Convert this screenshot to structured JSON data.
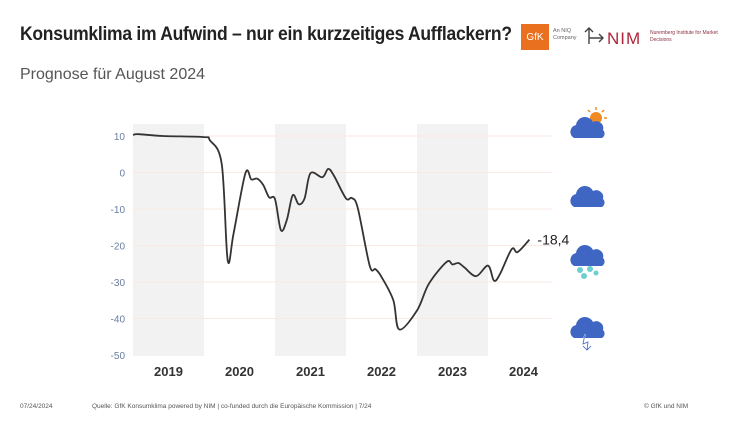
{
  "header": {
    "title": "Konsumklima im Aufwind –  nur ein kurzzeitiges Aufflackern?",
    "subtitle": "Prognose für August 2024"
  },
  "logos": {
    "gfk": "GfK",
    "gfk_sub": "An NIQ Company",
    "nim": "NIM",
    "nim_sub": "Nuremberg Institute for Market Decisions"
  },
  "footer": {
    "date": "07/24/2024",
    "source": "Quelle: GfK Konsumklima powered by NIM | co-funded durch die Europäische Kommission | 7/24",
    "copyright": "© GfK und NIM"
  },
  "icons": [
    "sun-cloud-icon",
    "cloud-icon",
    "rain-cloud-icon",
    "thunder-cloud-icon"
  ],
  "chart_data": {
    "type": "line",
    "title": "",
    "ylim": [
      -50,
      10
    ],
    "yticks": [
      "10",
      "0",
      "-10",
      "-20",
      "-30",
      "-40",
      "-50"
    ],
    "ytick_values": [
      10,
      0,
      -10,
      -20,
      -30,
      -40,
      -50
    ],
    "xlim": [
      "2019-01",
      "2024-12"
    ],
    "xtick_labels": [
      "2019",
      "2020",
      "2021",
      "2022",
      "2023",
      "2024"
    ],
    "shaded_years": [
      "2019",
      "2021",
      "2023"
    ],
    "grid": true,
    "line_color": "#333333",
    "end_label": "-18,4",
    "points": [
      [
        "2019-01",
        10.3
      ],
      [
        "2019-02",
        10.5
      ],
      [
        "2019-06",
        10
      ],
      [
        "2020-01",
        9.7
      ],
      [
        "2020-02",
        8.8
      ],
      [
        "2020-04",
        2.3
      ],
      [
        "2020-05",
        -24
      ],
      [
        "2020-06",
        -16.7
      ],
      [
        "2020-08",
        -0.2
      ],
      [
        "2020-09",
        -1.9
      ],
      [
        "2020-10",
        -1.7
      ],
      [
        "2020-11",
        -3.4
      ],
      [
        "2020-12",
        -6.8
      ],
      [
        "2021-01",
        -7.3
      ],
      [
        "2021-02",
        -15.8
      ],
      [
        "2021-03",
        -13
      ],
      [
        "2021-04",
        -6.2
      ],
      [
        "2021-05",
        -8.7
      ],
      [
        "2021-06",
        -7.1
      ],
      [
        "2021-07",
        -0.2
      ],
      [
        "2021-09",
        -1.3
      ],
      [
        "2021-10",
        1
      ],
      [
        "2021-11",
        -1
      ],
      [
        "2022-01",
        -7.1
      ],
      [
        "2022-02",
        -7
      ],
      [
        "2022-03",
        -9.8
      ],
      [
        "2022-05",
        -25.5
      ],
      [
        "2022-06",
        -26.5
      ],
      [
        "2022-07",
        -28.6
      ],
      [
        "2022-09",
        -35
      ],
      [
        "2022-10",
        -43
      ],
      [
        "2023-01",
        -37.8
      ],
      [
        "2023-03",
        -30.5
      ],
      [
        "2023-06",
        -24.5
      ],
      [
        "2023-07",
        -25.2
      ],
      [
        "2023-08",
        -24.8
      ],
      [
        "2023-09",
        -26
      ],
      [
        "2023-11",
        -28.4
      ],
      [
        "2024-01",
        -25.5
      ],
      [
        "2024-02",
        -29.6
      ],
      [
        "2024-03",
        -27.9
      ],
      [
        "2024-05",
        -21
      ],
      [
        "2024-06",
        -21.8
      ],
      [
        "2024-08",
        -18.4
      ]
    ]
  }
}
